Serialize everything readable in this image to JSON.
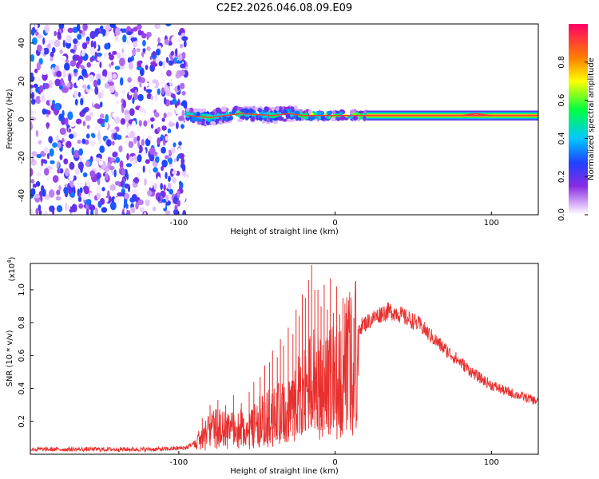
{
  "figure_title": "C2E2.2026.046.08.09.E09",
  "chart_data": [
    {
      "type": "heatmap",
      "title": "C2E2.2026.046.08.09.E09",
      "xlabel": "Height of straight line (km)",
      "ylabel": "Frequency (Hz)",
      "xlim": [
        -195,
        130
      ],
      "ylim": [
        -50,
        50
      ],
      "xticks": [
        -100,
        0,
        100
      ],
      "yticks": [
        -40,
        -20,
        0,
        20,
        40
      ],
      "colorbar": {
        "label": "Normalized spectral amplitude",
        "range": [
          0,
          1
        ],
        "ticks": [
          0.0,
          0.2,
          0.4,
          0.6,
          0.8
        ]
      },
      "regions": [
        {
          "name": "noise",
          "x_range": [
            -195,
            -95
          ],
          "freq_range": [
            -50,
            50
          ],
          "amplitude": 0.15
        },
        {
          "name": "onset",
          "x_range": [
            -95,
            -25
          ],
          "freq_range": [
            -5,
            10
          ],
          "amplitude": 0.45
        },
        {
          "name": "transition",
          "x_range": [
            -25,
            20
          ],
          "freq_range": [
            -2,
            6
          ],
          "amplitude": 0.6
        },
        {
          "name": "stable",
          "x_range": [
            20,
            130
          ],
          "freq_range": [
            0,
            4
          ],
          "amplitude": 0.95
        }
      ],
      "ridge": {
        "x": [
          -95,
          -80,
          -60,
          -40,
          -30,
          -20,
          -10,
          0,
          10,
          20,
          40,
          60,
          80,
          90,
          100,
          130
        ],
        "y": [
          2,
          1,
          3,
          2,
          3,
          2,
          2,
          2,
          2,
          2,
          2,
          2,
          2,
          3,
          2,
          2
        ]
      }
    },
    {
      "type": "line",
      "xlabel": "Height of straight line (km)",
      "ylabel": "SNR (10 * v/v)",
      "yscale_note": "(x10",
      "yscale_exp": "4",
      "xlim": [
        -195,
        130
      ],
      "ylim": [
        0,
        1.16
      ],
      "xticks": [
        -100,
        0,
        100
      ],
      "yticks": [
        0.2,
        0.4,
        0.6,
        0.8,
        1.0
      ],
      "color": "#e8302e",
      "series": [
        {
          "name": "SNR",
          "x": [
            -195,
            -150,
            -110,
            -95,
            -90,
            -85,
            -80,
            -75,
            -70,
            -65,
            -60,
            -55,
            -50,
            -45,
            -40,
            -35,
            -30,
            -25,
            -20,
            -17,
            -15,
            -13,
            -10,
            -7,
            -5,
            -3,
            0,
            5,
            10,
            15,
            20,
            25,
            30,
            35,
            40,
            45,
            50,
            55,
            60,
            70,
            80,
            90,
            100,
            110,
            120,
            130
          ],
          "y": [
            0.03,
            0.03,
            0.03,
            0.04,
            0.07,
            0.13,
            0.17,
            0.2,
            0.18,
            0.2,
            0.19,
            0.18,
            0.24,
            0.25,
            0.3,
            0.3,
            0.33,
            0.4,
            0.45,
            0.52,
            0.55,
            0.52,
            0.48,
            0.5,
            0.55,
            0.52,
            0.55,
            0.66,
            0.72,
            0.77,
            0.8,
            0.83,
            0.86,
            0.87,
            0.86,
            0.83,
            0.81,
            0.78,
            0.73,
            0.64,
            0.56,
            0.48,
            0.42,
            0.38,
            0.35,
            0.32
          ]
        }
      ],
      "spikes": {
        "x": [
          -85,
          -80,
          -75,
          -70,
          -65,
          -60,
          -55,
          -52,
          -48,
          -45,
          -42,
          -40,
          -37,
          -35,
          -33,
          -30,
          -27,
          -25,
          -23,
          -21,
          -19,
          -17,
          -15,
          -13,
          -11,
          -9,
          -7,
          -5,
          -3,
          -1,
          1,
          3,
          5,
          8,
          10,
          12
        ],
        "y": [
          0.22,
          0.3,
          0.33,
          0.3,
          0.36,
          0.31,
          0.38,
          0.44,
          0.47,
          0.54,
          0.56,
          0.63,
          0.59,
          0.7,
          0.66,
          0.77,
          0.73,
          0.88,
          0.84,
          0.97,
          0.95,
          1.06,
          1.15,
          1.0,
          1.0,
          0.9,
          1.03,
          0.88,
          1.07,
          0.86,
          1.02,
          0.85,
          0.95,
          0.82,
          0.85,
          0.83
        ]
      }
    }
  ]
}
